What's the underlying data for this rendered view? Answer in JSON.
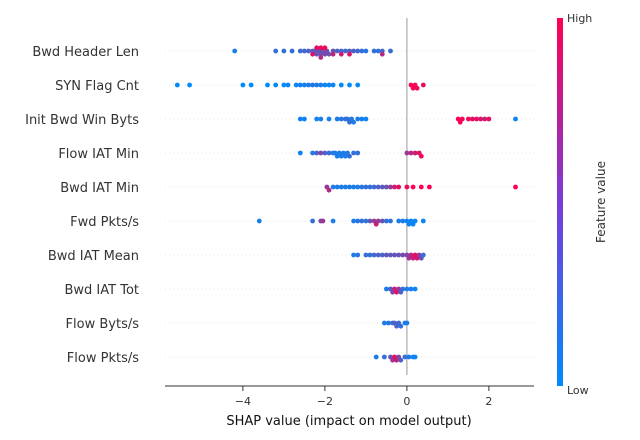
{
  "chart_data": {
    "type": "scatter",
    "subtype": "shap-beeswarm",
    "xlabel": "SHAP value (impact on model output)",
    "xticks": [
      -4,
      -2,
      0,
      2
    ],
    "xlim": [
      -5.9,
      3.1
    ],
    "grid": false,
    "colorbar": {
      "title": "Feature value",
      "high_label": "High",
      "low_label": "Low",
      "low_color": "#008bfb",
      "high_color": "#ff0052"
    },
    "features": [
      {
        "name": "Bwd Header Len",
        "points": [
          [
            -4.2,
            0.1
          ],
          [
            -3.2,
            0.2
          ],
          [
            -3.0,
            0.2
          ],
          [
            -2.8,
            0.2
          ],
          [
            -2.6,
            0.25
          ],
          [
            -2.5,
            0.25
          ],
          [
            -2.4,
            0.3
          ],
          [
            -2.3,
            0.3
          ],
          [
            -2.25,
            0.35
          ],
          [
            -2.2,
            0.4
          ],
          [
            -2.15,
            0.4
          ],
          [
            -2.1,
            0.4
          ],
          [
            -2.05,
            0.45
          ],
          [
            -2.0,
            0.5
          ],
          [
            -1.95,
            0.45
          ],
          [
            -1.9,
            0.4
          ],
          [
            -1.8,
            0.4
          ],
          [
            -1.7,
            0.3
          ],
          [
            -1.6,
            0.25
          ],
          [
            -1.5,
            0.25
          ],
          [
            -1.4,
            0.3
          ],
          [
            -1.3,
            0.3
          ],
          [
            -1.2,
            0.25
          ],
          [
            -1.1,
            0.2
          ],
          [
            -1.0,
            0.15
          ],
          [
            -0.8,
            0.2
          ],
          [
            -0.7,
            0.2
          ],
          [
            -0.6,
            0.25
          ],
          [
            -0.4,
            0.2
          ],
          [
            -2.3,
            0.85
          ],
          [
            -2.2,
            0.9
          ],
          [
            -2.1,
            0.9
          ],
          [
            -2.0,
            0.95
          ],
          [
            -2.1,
            0.7
          ],
          [
            -1.8,
            0.75
          ],
          [
            -1.6,
            0.8
          ],
          [
            -1.4,
            0.85
          ],
          [
            -0.6,
            0.7
          ]
        ]
      },
      {
        "name": "SYN Flag Cnt",
        "points": [
          [
            -5.6,
            0.0
          ],
          [
            -5.3,
            0.0
          ],
          [
            -4.0,
            0.0
          ],
          [
            -3.8,
            0.0
          ],
          [
            -3.4,
            0.0
          ],
          [
            -3.2,
            0.0
          ],
          [
            -3.0,
            0.0
          ],
          [
            -2.9,
            0.05
          ],
          [
            -2.7,
            0.05
          ],
          [
            -2.6,
            0.05
          ],
          [
            -2.5,
            0.1
          ],
          [
            -2.4,
            0.1
          ],
          [
            -2.3,
            0.15
          ],
          [
            -2.2,
            0.1
          ],
          [
            -2.1,
            0.1
          ],
          [
            -2.0,
            0.05
          ],
          [
            -1.9,
            0.05
          ],
          [
            -1.8,
            0.05
          ],
          [
            -1.6,
            0.0
          ],
          [
            -1.4,
            0.0
          ],
          [
            -1.2,
            0.0
          ],
          [
            0.1,
            1.0
          ],
          [
            0.15,
            1.0
          ],
          [
            0.2,
            0.95
          ],
          [
            0.25,
            0.95
          ],
          [
            0.4,
            0.9
          ]
        ]
      },
      {
        "name": "Init Bwd Win Byts",
        "points": [
          [
            -2.6,
            0.05
          ],
          [
            -2.5,
            0.05
          ],
          [
            -2.2,
            0.05
          ],
          [
            -2.1,
            0.1
          ],
          [
            -1.9,
            0.05
          ],
          [
            -1.7,
            0.1
          ],
          [
            -1.6,
            0.15
          ],
          [
            -1.5,
            0.2
          ],
          [
            -1.45,
            0.2
          ],
          [
            -1.4,
            0.2
          ],
          [
            -1.35,
            0.15
          ],
          [
            -1.3,
            0.1
          ],
          [
            -1.2,
            0.1
          ],
          [
            -1.1,
            0.1
          ],
          [
            -1.0,
            0.05
          ],
          [
            1.25,
            1.0
          ],
          [
            1.3,
            1.0
          ],
          [
            1.35,
            0.95
          ],
          [
            1.5,
            0.95
          ],
          [
            1.6,
            0.9
          ],
          [
            1.7,
            0.9
          ],
          [
            1.8,
            0.85
          ],
          [
            1.9,
            0.8
          ],
          [
            2.0,
            0.9
          ],
          [
            2.65,
            0.05
          ]
        ]
      },
      {
        "name": "Flow IAT Min",
        "points": [
          [
            -2.6,
            0.05
          ],
          [
            -2.3,
            0.1
          ],
          [
            -2.2,
            0.3
          ],
          [
            -2.1,
            0.5
          ],
          [
            -2.0,
            0.3
          ],
          [
            -1.9,
            0.2
          ],
          [
            -1.8,
            0.15
          ],
          [
            -1.75,
            0.1
          ],
          [
            -1.7,
            0.1
          ],
          [
            -1.65,
            0.1
          ],
          [
            -1.6,
            0.1
          ],
          [
            -1.55,
            0.1
          ],
          [
            -1.5,
            0.1
          ],
          [
            -1.45,
            0.15
          ],
          [
            -1.4,
            0.2
          ],
          [
            -1.3,
            0.2
          ],
          [
            -1.2,
            0.2
          ],
          [
            0.0,
            0.6
          ],
          [
            0.1,
            0.7
          ],
          [
            0.2,
            0.8
          ],
          [
            0.3,
            0.9
          ],
          [
            0.35,
            0.95
          ]
        ]
      },
      {
        "name": "Bwd IAT Min",
        "points": [
          [
            -1.95,
            0.6
          ],
          [
            -1.9,
            0.7
          ],
          [
            -1.8,
            0.1
          ],
          [
            -1.7,
            0.1
          ],
          [
            -1.6,
            0.1
          ],
          [
            -1.5,
            0.1
          ],
          [
            -1.4,
            0.1
          ],
          [
            -1.3,
            0.1
          ],
          [
            -1.2,
            0.1
          ],
          [
            -1.1,
            0.15
          ],
          [
            -1.0,
            0.2
          ],
          [
            -0.9,
            0.2
          ],
          [
            -0.8,
            0.25
          ],
          [
            -0.7,
            0.3
          ],
          [
            -0.6,
            0.35
          ],
          [
            -0.5,
            0.4
          ],
          [
            -0.4,
            0.6
          ],
          [
            -0.3,
            0.8
          ],
          [
            -0.2,
            0.9
          ],
          [
            0.0,
            0.95
          ],
          [
            0.15,
            1.0
          ],
          [
            0.35,
            1.0
          ],
          [
            0.55,
            1.0
          ],
          [
            2.65,
            1.0
          ]
        ]
      },
      {
        "name": "Fwd Pkts/s",
        "points": [
          [
            -3.6,
            0.1
          ],
          [
            -2.3,
            0.2
          ],
          [
            -2.1,
            0.5
          ],
          [
            -2.05,
            0.6
          ],
          [
            -1.8,
            0.1
          ],
          [
            -1.3,
            0.1
          ],
          [
            -1.2,
            0.15
          ],
          [
            -1.1,
            0.2
          ],
          [
            -1.0,
            0.2
          ],
          [
            -0.9,
            0.4
          ],
          [
            -0.8,
            0.6
          ],
          [
            -0.75,
            0.8
          ],
          [
            -0.7,
            0.6
          ],
          [
            -0.6,
            0.4
          ],
          [
            -0.5,
            0.2
          ],
          [
            -0.4,
            0.15
          ],
          [
            -0.2,
            0.1
          ],
          [
            -0.1,
            0.1
          ],
          [
            0.0,
            0.05
          ],
          [
            0.05,
            0.05
          ],
          [
            0.1,
            0.05
          ],
          [
            0.15,
            0.05
          ],
          [
            0.2,
            0.05
          ],
          [
            0.4,
            0.05
          ]
        ]
      },
      {
        "name": "Bwd IAT Mean",
        "points": [
          [
            -1.3,
            0.1
          ],
          [
            -1.2,
            0.15
          ],
          [
            -1.0,
            0.2
          ],
          [
            -0.9,
            0.2
          ],
          [
            -0.8,
            0.25
          ],
          [
            -0.7,
            0.3
          ],
          [
            -0.6,
            0.3
          ],
          [
            -0.5,
            0.35
          ],
          [
            -0.4,
            0.35
          ],
          [
            -0.3,
            0.4
          ],
          [
            -0.2,
            0.4
          ],
          [
            -0.1,
            0.45
          ],
          [
            0.0,
            0.5
          ],
          [
            0.05,
            0.6
          ],
          [
            0.1,
            0.7
          ],
          [
            0.15,
            0.8
          ],
          [
            0.2,
            0.9
          ],
          [
            0.25,
            0.85
          ],
          [
            0.3,
            0.6
          ],
          [
            0.35,
            0.4
          ],
          [
            0.4,
            0.2
          ]
        ]
      },
      {
        "name": "Bwd IAT Tot",
        "points": [
          [
            -0.5,
            0.1
          ],
          [
            -0.4,
            0.3
          ],
          [
            -0.35,
            0.5
          ],
          [
            -0.3,
            0.8
          ],
          [
            -0.25,
            0.9
          ],
          [
            -0.2,
            0.6
          ],
          [
            -0.15,
            0.3
          ],
          [
            -0.1,
            0.2
          ],
          [
            0.0,
            0.1
          ],
          [
            0.1,
            0.1
          ],
          [
            0.2,
            0.05
          ]
        ]
      },
      {
        "name": "Flow Byts/s",
        "points": [
          [
            -0.55,
            0.1
          ],
          [
            -0.45,
            0.15
          ],
          [
            -0.35,
            0.2
          ],
          [
            -0.3,
            0.3
          ],
          [
            -0.25,
            0.3
          ],
          [
            -0.2,
            0.25
          ],
          [
            -0.15,
            0.2
          ],
          [
            -0.05,
            0.1
          ],
          [
            0.0,
            0.1
          ]
        ]
      },
      {
        "name": "Flow Pkts/s",
        "points": [
          [
            -0.75,
            0.1
          ],
          [
            -0.55,
            0.2
          ],
          [
            -0.4,
            0.4
          ],
          [
            -0.35,
            0.6
          ],
          [
            -0.3,
            0.9
          ],
          [
            -0.25,
            0.8
          ],
          [
            -0.2,
            0.5
          ],
          [
            -0.15,
            0.3
          ],
          [
            -0.05,
            0.2
          ],
          [
            0.05,
            0.1
          ],
          [
            0.15,
            0.05
          ],
          [
            0.2,
            0.05
          ]
        ]
      }
    ]
  }
}
